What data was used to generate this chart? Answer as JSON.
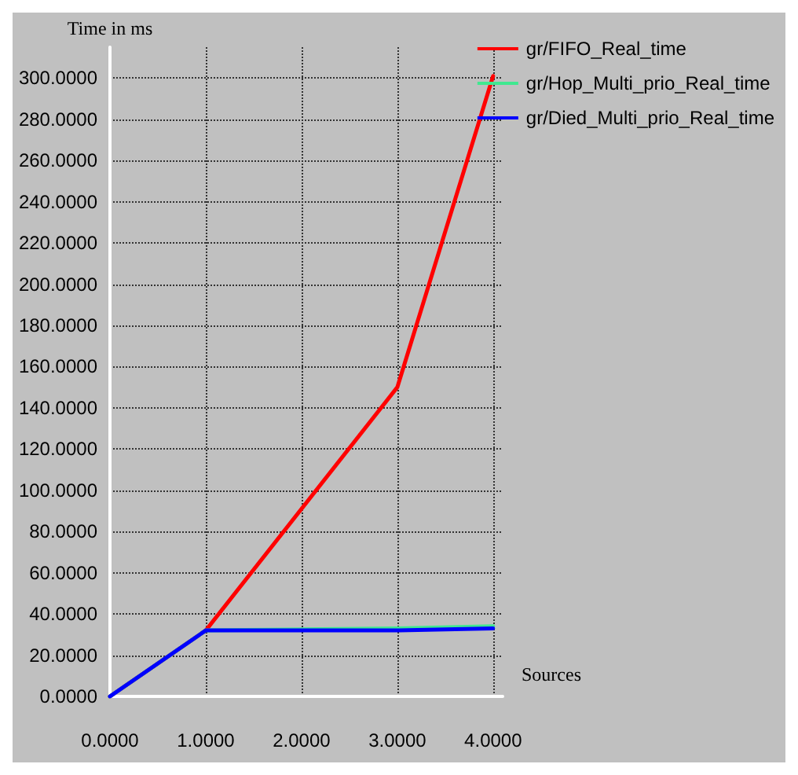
{
  "chart_data": {
    "type": "line",
    "xlabel": "Sources",
    "ylabel": "Time in ms",
    "x": [
      0,
      1,
      3,
      4
    ],
    "series": [
      {
        "name": "gr/FIFO_Real_time",
        "color": "#ff0000",
        "values": [
          0,
          32,
          150,
          301
        ]
      },
      {
        "name": "gr/Hop_Multi_prio_Real_time",
        "color": "#40e890",
        "values": [
          0,
          32,
          33,
          34
        ]
      },
      {
        "name": "gr/Died_Multi_prio_Real_time",
        "color": "#0000ff",
        "values": [
          0,
          32,
          32,
          33
        ]
      }
    ],
    "xlim": [
      0,
      4.1
    ],
    "ylim": [
      0,
      315
    ],
    "xticks": [
      {
        "value": 0,
        "label": "0.0000"
      },
      {
        "value": 1,
        "label": "1.0000"
      },
      {
        "value": 2,
        "label": "2.0000"
      },
      {
        "value": 3,
        "label": "3.0000"
      },
      {
        "value": 4,
        "label": "4.0000"
      }
    ],
    "yticks": [
      {
        "value": 0,
        "label": "0.0000"
      },
      {
        "value": 20,
        "label": "20.0000"
      },
      {
        "value": 40,
        "label": "40.0000"
      },
      {
        "value": 60,
        "label": "60.0000"
      },
      {
        "value": 80,
        "label": "80.0000"
      },
      {
        "value": 100,
        "label": "100.0000"
      },
      {
        "value": 120,
        "label": "120.0000"
      },
      {
        "value": 140,
        "label": "140.0000"
      },
      {
        "value": 160,
        "label": "160.0000"
      },
      {
        "value": 180,
        "label": "180.0000"
      },
      {
        "value": 200,
        "label": "200.0000"
      },
      {
        "value": 220,
        "label": "220.0000"
      },
      {
        "value": 240,
        "label": "240.0000"
      },
      {
        "value": 260,
        "label": "260.0000"
      },
      {
        "value": 280,
        "label": "280.0000"
      },
      {
        "value": 300,
        "label": "300.0000"
      }
    ],
    "grid": true,
    "legend": "top right",
    "marker": "none",
    "line_style": "solid"
  }
}
